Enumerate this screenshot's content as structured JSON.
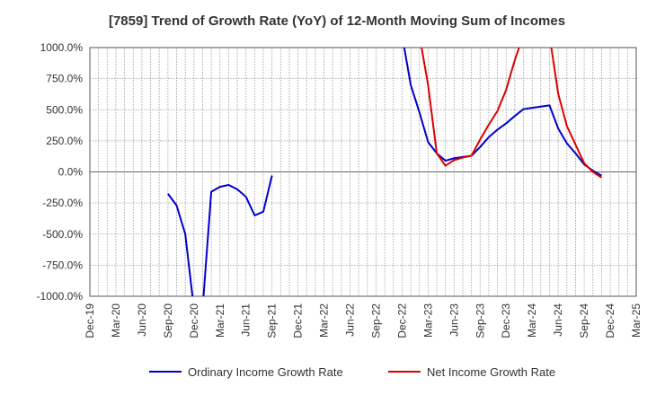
{
  "chart_data": {
    "type": "line",
    "title": "[7859]  Trend of Growth Rate (YoY) of 12-Month Moving Sum of Incomes",
    "xlabel": "",
    "ylabel": "",
    "ylim": [
      -1000,
      1000
    ],
    "y_ticks": [
      "1000.0%",
      "750.0%",
      "500.0%",
      "250.0%",
      "0.0%",
      "-250.0%",
      "-500.0%",
      "-750.0%",
      "-1000.0%"
    ],
    "y_tick_values": [
      1000,
      750,
      500,
      250,
      0,
      -250,
      -500,
      -750,
      -1000
    ],
    "x_ticks": [
      "Dec-19",
      "Mar-20",
      "Jun-20",
      "Sep-20",
      "Dec-20",
      "Mar-21",
      "Jun-21",
      "Sep-21",
      "Dec-21",
      "Mar-22",
      "Jun-22",
      "Sep-22",
      "Dec-22",
      "Mar-23",
      "Jun-23",
      "Sep-23",
      "Dec-23",
      "Mar-24",
      "Jun-24",
      "Sep-24",
      "Dec-24",
      "Mar-25"
    ],
    "grid": true,
    "legend_position": "bottom",
    "series": [
      {
        "name": "Ordinary Income Growth Rate",
        "color": "#0000cc",
        "points": [
          [
            "2020-09",
            -175
          ],
          [
            "2020-10",
            -270
          ],
          [
            "2020-11",
            -500
          ],
          [
            "2020-12",
            -1100
          ],
          [
            "2021-01",
            -1100
          ],
          [
            "2021-02",
            -160
          ],
          [
            "2021-03",
            -120
          ],
          [
            "2021-04",
            -105
          ],
          [
            "2021-05",
            -140
          ],
          [
            "2021-06",
            -200
          ],
          [
            "2021-07",
            -350
          ],
          [
            "2021-08",
            -320
          ],
          [
            "2021-09",
            -30
          ],
          null,
          [
            "2022-12",
            1100
          ],
          [
            "2023-01",
            700
          ],
          [
            "2023-02",
            480
          ],
          [
            "2023-03",
            240
          ],
          [
            "2023-04",
            150
          ],
          [
            "2023-05",
            90
          ],
          [
            "2023-06",
            110
          ],
          [
            "2023-07",
            120
          ],
          [
            "2023-08",
            130
          ],
          [
            "2023-09",
            200
          ],
          [
            "2023-10",
            280
          ],
          [
            "2023-11",
            340
          ],
          [
            "2023-12",
            390
          ],
          [
            "2024-01",
            450
          ],
          [
            "2024-02",
            505
          ],
          [
            "2024-03",
            515
          ],
          [
            "2024-04",
            525
          ],
          [
            "2024-05",
            535
          ],
          [
            "2024-06",
            350
          ],
          [
            "2024-07",
            230
          ],
          [
            "2024-08",
            150
          ],
          [
            "2024-09",
            60
          ],
          [
            "2024-10",
            10
          ],
          [
            "2024-11",
            -30
          ]
        ]
      },
      {
        "name": "Net Income Growth Rate",
        "color": "#dd0000",
        "points": [
          [
            "2023-02",
            1100
          ],
          [
            "2023-03",
            700
          ],
          [
            "2023-04",
            150
          ],
          [
            "2023-05",
            50
          ],
          [
            "2023-06",
            95
          ],
          [
            "2023-07",
            115
          ],
          [
            "2023-08",
            130
          ],
          [
            "2023-09",
            260
          ],
          [
            "2023-10",
            380
          ],
          [
            "2023-11",
            490
          ],
          [
            "2023-12",
            660
          ],
          [
            "2024-01",
            900
          ],
          [
            "2024-02",
            1100
          ],
          null,
          [
            "2024-05",
            1100
          ],
          [
            "2024-06",
            630
          ],
          [
            "2024-07",
            370
          ],
          [
            "2024-08",
            220
          ],
          [
            "2024-09",
            70
          ],
          [
            "2024-10",
            0
          ],
          [
            "2024-11",
            -45
          ]
        ]
      }
    ]
  }
}
